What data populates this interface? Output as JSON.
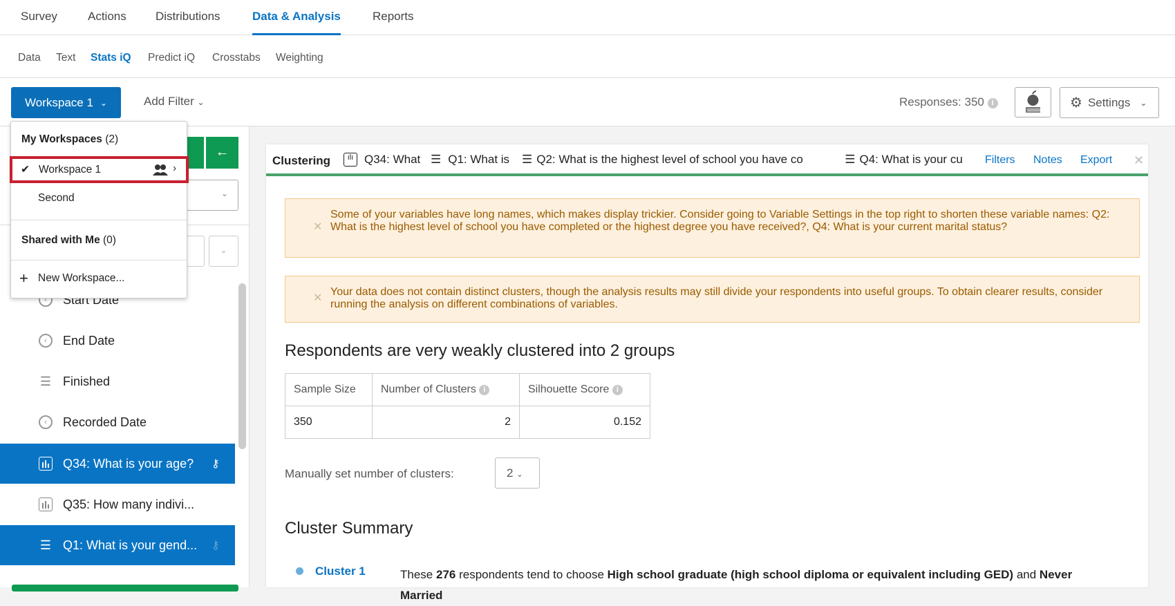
{
  "top_nav": {
    "tabs": [
      "Survey",
      "Actions",
      "Distributions",
      "Data & Analysis",
      "Reports"
    ],
    "active": "Data & Analysis"
  },
  "sub_nav": {
    "tabs": [
      "Data",
      "Text",
      "Stats iQ",
      "Predict iQ",
      "Crosstabs",
      "Weighting"
    ],
    "active": "Stats iQ"
  },
  "toolbar": {
    "workspace_label": "Workspace 1",
    "add_filter": "Add Filter",
    "responses": "Responses: 350",
    "info": "i",
    "settings": "Settings"
  },
  "workspace_menu": {
    "my_header": "My Workspaces",
    "my_count": "(2)",
    "items": [
      "Workspace 1",
      "Second"
    ],
    "selected": "Workspace 1",
    "shared_header": "Shared with Me",
    "shared_count": "(0)",
    "new_label": "New Workspace..."
  },
  "left_panel": {
    "arrow": "←",
    "dropdown_partial": "ed",
    "variables": [
      {
        "label": "Start Date",
        "icon": "clock-icon",
        "selected": false
      },
      {
        "label": "End Date",
        "icon": "clock-icon",
        "selected": false
      },
      {
        "label": "Finished",
        "icon": "list-icon",
        "selected": false
      },
      {
        "label": "Recorded Date",
        "icon": "clock-icon",
        "selected": false
      },
      {
        "label": "Q34: What is your age?",
        "icon": "bar-chart-icon",
        "selected": true
      },
      {
        "label": "Q35: How many indivi...",
        "icon": "bar-chart-icon",
        "selected": false
      },
      {
        "label": "Q1: What is your gend...",
        "icon": "list-icon",
        "selected": true
      }
    ]
  },
  "card": {
    "title": "Clustering",
    "variables": [
      "Q34: What",
      "Q1: What is",
      "Q2: What is the highest level of school you have co",
      "Q4: What is your cu"
    ],
    "actions": [
      "Filters",
      "Notes",
      "Export"
    ],
    "warnings": [
      "Some of your variables have long names, which makes display trickier. Consider going to Variable Settings in the top right to shorten these variable names: Q2: What is the highest level of school you have completed or the highest degree you have received?, Q4: What is your current marital status?",
      "Your data does not contain distinct clusters, though the analysis results may still divide your respondents into useful groups. To obtain clearer results, consider running the analysis on different combinations of variables."
    ],
    "heading": "Respondents are very weakly clustered into 2 groups",
    "stats": {
      "headers": [
        "Sample Size",
        "Number of Clusters",
        "Silhouette Score"
      ],
      "values": [
        "350",
        "2",
        "0.152"
      ]
    },
    "manual_label": "Manually set number of clusters:",
    "manual_value": "2",
    "summary_heading": "Cluster Summary",
    "cluster1": {
      "name": "Cluster 1",
      "t1": "These ",
      "count": "276",
      "t2": " respondents tend to choose ",
      "choice1": "High school graduate (high school diploma or equivalent including GED)",
      "t3": " and ",
      "choice2": "Never Married"
    }
  },
  "colors": {
    "accent": "#0a74c4",
    "green": "#0e9a52",
    "highlight": "#c8202f",
    "warning_bg": "#fdf0de"
  }
}
